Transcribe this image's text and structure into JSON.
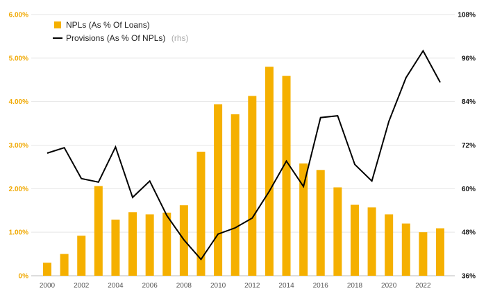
{
  "chart_data": {
    "type": "bar",
    "x": [
      2000,
      2001,
      2002,
      2003,
      2004,
      2005,
      2006,
      2007,
      2008,
      2009,
      2010,
      2011,
      2012,
      2013,
      2014,
      2015,
      2016,
      2017,
      2018,
      2019,
      2020,
      2021,
      2022,
      2023
    ],
    "x_tick_labels": [
      "2000",
      "2002",
      "2004",
      "2006",
      "2008",
      "2010",
      "2012",
      "2014",
      "2016",
      "2018",
      "2020",
      "2022"
    ],
    "series": [
      {
        "name": "NPLs (As % Of Loans)",
        "type": "bar",
        "axis": "left",
        "color": "#f5b000",
        "values": [
          0.3,
          0.5,
          0.92,
          2.06,
          1.29,
          1.46,
          1.41,
          1.45,
          1.62,
          2.85,
          3.94,
          3.71,
          4.13,
          4.8,
          4.59,
          2.58,
          2.43,
          2.03,
          1.63,
          1.57,
          1.41,
          1.2,
          1.0,
          1.09
        ]
      },
      {
        "name": "Provisions (As % Of NPLs)",
        "name_suffix": "(rhs)",
        "type": "line",
        "axis": "right",
        "color": "#000000",
        "values": [
          69.8,
          71.3,
          62.8,
          61.8,
          71.5,
          57.6,
          62.1,
          52.6,
          45.9,
          40.5,
          47.5,
          49.2,
          51.9,
          59.3,
          67.6,
          60.6,
          79.6,
          80.1,
          66.7,
          62.1,
          78.6,
          90.6,
          98.0,
          89.3
        ]
      }
    ],
    "y_left": {
      "range": [
        0,
        6
      ],
      "ticks": [
        "0%",
        "1.00%",
        "2.00%",
        "3.00%",
        "4.00%",
        "5.00%",
        "6.00%"
      ],
      "color": "#f0a800"
    },
    "y_right": {
      "range": [
        36,
        108
      ],
      "ticks": [
        "36%",
        "48%",
        "60%",
        "72%",
        "84%",
        "96%",
        "108%"
      ],
      "color": "#111111"
    },
    "grid": "horizontal",
    "legend_position": "top-left"
  }
}
